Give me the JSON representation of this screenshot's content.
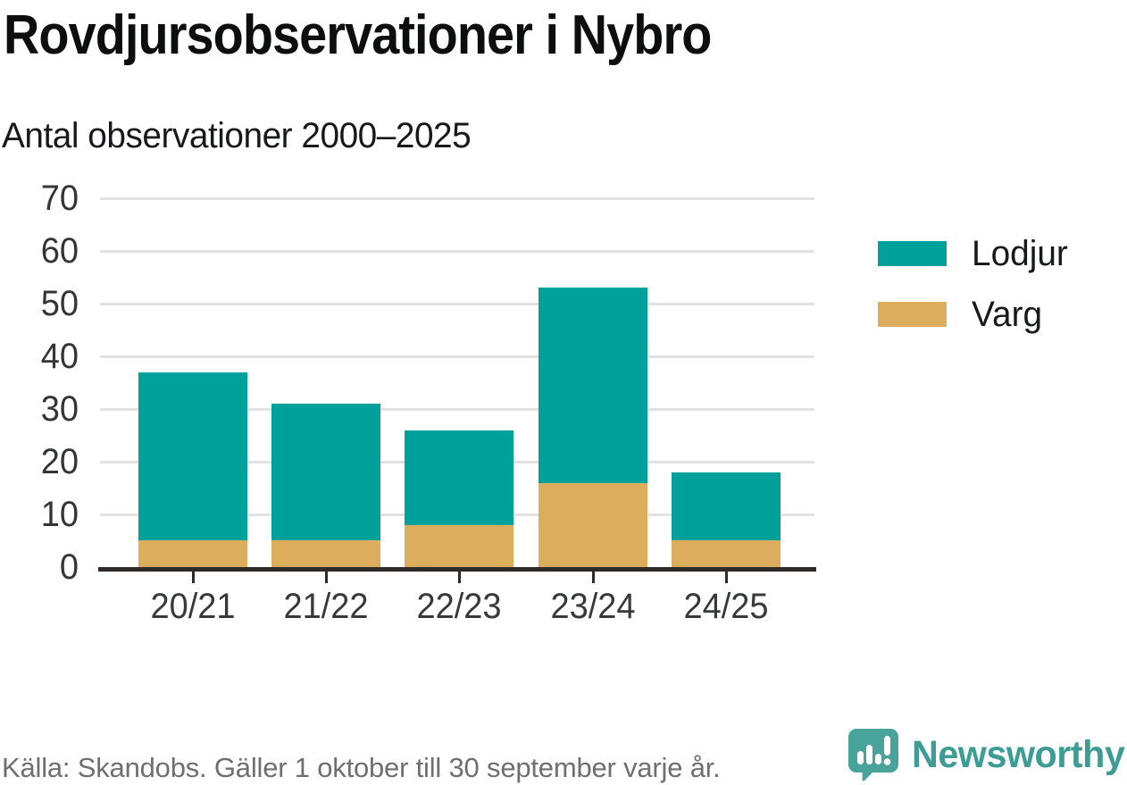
{
  "header": {
    "title": "Rovdjursobservationer i Nybro",
    "subtitle": "Antal observationer 2000–2025"
  },
  "chart_data": {
    "type": "bar",
    "stacked": true,
    "title": "Rovdjursobservationer i Nybro",
    "subtitle": "Antal observationer 2000–2025",
    "categories": [
      "20/21",
      "21/22",
      "22/23",
      "23/24",
      "24/25"
    ],
    "series": [
      {
        "name": "Varg",
        "color": "#dcad5d",
        "values": [
          5,
          5,
          8,
          16,
          5
        ]
      },
      {
        "name": "Lodjur",
        "color": "#00a19a",
        "values": [
          32,
          26,
          18,
          37,
          13
        ]
      }
    ],
    "stack_order": "bottom_to_top",
    "totals": [
      37,
      31,
      26,
      53,
      18
    ],
    "xlabel": "",
    "ylabel": "",
    "ylim": [
      0,
      70
    ],
    "yticks": [
      0,
      10,
      20,
      30,
      40,
      50,
      60,
      70
    ],
    "grid": true,
    "legend_position": "right"
  },
  "legend": {
    "items": [
      {
        "label": "Lodjur",
        "color": "#00a19a"
      },
      {
        "label": "Varg",
        "color": "#dcad5d"
      }
    ]
  },
  "footer": {
    "source": "Källa: Skandobs. Gäller 1 oktober till 30 september varje år.",
    "brand": "Newsworthy"
  },
  "colors": {
    "lodjur": "#00a19a",
    "varg": "#dcad5d",
    "axis": "#2d2a27",
    "gridline": "#e2e2e2",
    "brand_teal": "#3d9d95"
  }
}
